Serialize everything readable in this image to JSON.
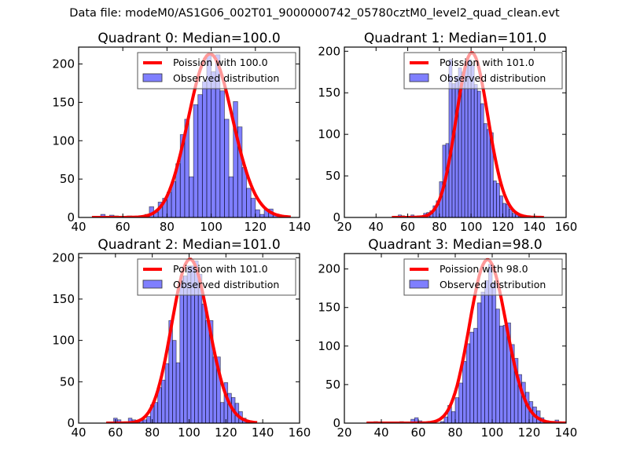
{
  "suptitle": "Data file: modeM0/AS1G06_002T01_9000000742_05780cztM0_level2_quad_clean.evt",
  "chart_data": [
    {
      "type": "bar",
      "title": "Quadrant 0: Median=100.0",
      "xlabel": "",
      "ylabel": "",
      "xlim": [
        40,
        140
      ],
      "ylim": [
        0,
        222
      ],
      "xticks": [
        40,
        60,
        80,
        100,
        120,
        140
      ],
      "yticks": [
        0,
        50,
        100,
        150,
        200
      ],
      "bin_width": 2,
      "legend": {
        "placement": "upper-right",
        "entries": [
          "Poission with 100.0",
          "Observed distribution"
        ]
      },
      "poisson_mean": 100.0,
      "poisson_peak": 213,
      "series": [
        {
          "name": "Observed distribution",
          "color": "#0000ff",
          "alpha": 0.5,
          "bin_starts": [
            50,
            52,
            54,
            56,
            58,
            60,
            62,
            64,
            66,
            68,
            70,
            72,
            74,
            76,
            78,
            80,
            82,
            84,
            86,
            88,
            90,
            92,
            94,
            96,
            98,
            100,
            102,
            104,
            106,
            108,
            110,
            112,
            114,
            116,
            118,
            120,
            122,
            124,
            126,
            128,
            130
          ],
          "values": [
            4,
            0,
            3,
            2,
            0,
            0,
            2,
            0,
            0,
            0,
            4,
            14,
            7,
            20,
            25,
            33,
            47,
            70,
            108,
            128,
            53,
            147,
            160,
            177,
            212,
            190,
            212,
            165,
            128,
            53,
            151,
            118,
            65,
            38,
            25,
            10,
            4,
            10,
            11,
            3,
            0
          ]
        }
      ]
    },
    {
      "type": "bar",
      "title": "Quadrant 1: Median=101.0",
      "xlabel": "",
      "ylabel": "",
      "xlim": [
        20,
        160
      ],
      "ylim": [
        0,
        205
      ],
      "xticks": [
        20,
        40,
        60,
        80,
        100,
        120,
        140,
        160
      ],
      "yticks": [
        0,
        50,
        100,
        150,
        200
      ],
      "bin_width": 2,
      "legend": {
        "placement": "upper-right",
        "entries": [
          "Poission with 101.0",
          "Observed distribution"
        ]
      },
      "poisson_mean": 101.0,
      "poisson_peak": 198,
      "series": [
        {
          "name": "Observed distribution",
          "color": "#0000ff",
          "alpha": 0.5,
          "bin_starts": [
            54,
            56,
            58,
            60,
            62,
            64,
            66,
            68,
            70,
            72,
            74,
            76,
            78,
            80,
            82,
            84,
            86,
            88,
            90,
            92,
            94,
            96,
            98,
            100,
            102,
            104,
            106,
            108,
            110,
            112,
            114,
            116,
            118,
            120,
            122,
            124,
            126,
            128,
            130,
            132,
            134,
            136,
            138,
            140
          ],
          "values": [
            3,
            2,
            0,
            0,
            3,
            1,
            2,
            0,
            5,
            6,
            8,
            14,
            20,
            43,
            87,
            89,
            190,
            161,
            170,
            180,
            175,
            187,
            190,
            183,
            160,
            152,
            137,
            113,
            106,
            102,
            44,
            41,
            26,
            17,
            16,
            10,
            5,
            3,
            1,
            2,
            0,
            1,
            1,
            0
          ]
        }
      ]
    },
    {
      "type": "bar",
      "title": "Quadrant 2: Median=101.0",
      "xlabel": "",
      "ylabel": "",
      "xlim": [
        40,
        160
      ],
      "ylim": [
        0,
        205
      ],
      "xticks": [
        40,
        60,
        80,
        100,
        120,
        140,
        160
      ],
      "yticks": [
        0,
        50,
        100,
        150,
        200
      ],
      "bin_width": 2,
      "legend": {
        "placement": "upper-right",
        "entries": [
          "Poission with 101.0",
          "Observed distribution"
        ]
      },
      "poisson_mean": 101.0,
      "poisson_peak": 198,
      "series": [
        {
          "name": "Observed distribution",
          "color": "#0000ff",
          "alpha": 0.5,
          "bin_starts": [
            59,
            61,
            63,
            65,
            67,
            69,
            71,
            73,
            75,
            77,
            79,
            81,
            83,
            85,
            87,
            89,
            91,
            93,
            95,
            97,
            99,
            101,
            103,
            105,
            107,
            109,
            111,
            113,
            115,
            117,
            119,
            121,
            123,
            125,
            127,
            129,
            131
          ],
          "values": [
            6,
            4,
            0,
            0,
            6,
            4,
            2,
            3,
            4,
            8,
            22,
            25,
            43,
            52,
            72,
            124,
            100,
            73,
            178,
            178,
            190,
            190,
            196,
            180,
            144,
            124,
            124,
            80,
            80,
            25,
            49,
            36,
            31,
            24,
            14,
            6,
            2
          ]
        }
      ]
    },
    {
      "type": "bar",
      "title": "Quadrant 3: Median=98.0",
      "xlabel": "",
      "ylabel": "",
      "xlim": [
        20,
        140
      ],
      "ylim": [
        0,
        220
      ],
      "xticks": [
        20,
        40,
        60,
        80,
        100,
        120,
        140
      ],
      "yticks": [
        0,
        50,
        100,
        150,
        200
      ],
      "bin_width": 2,
      "legend": {
        "placement": "upper-right",
        "entries": [
          "Poission with 98.0",
          "Observed distribution"
        ]
      },
      "poisson_mean": 98.0,
      "poisson_peak": 212,
      "series": [
        {
          "name": "Observed distribution",
          "color": "#0000ff",
          "alpha": 0.5,
          "bin_starts": [
            36,
            38,
            40,
            42,
            44,
            46,
            48,
            50,
            52,
            54,
            56,
            58,
            60,
            62,
            64,
            66,
            68,
            70,
            72,
            74,
            76,
            78,
            80,
            82,
            84,
            86,
            88,
            90,
            92,
            94,
            96,
            98,
            100,
            102,
            104,
            106,
            108,
            110,
            112,
            114,
            116,
            118,
            120,
            122,
            124,
            126,
            128,
            130,
            132,
            134
          ],
          "values": [
            2,
            0,
            0,
            0,
            0,
            0,
            1,
            2,
            0,
            0,
            5,
            7,
            3,
            1,
            0,
            0,
            0,
            0,
            2,
            8,
            23,
            15,
            33,
            52,
            80,
            103,
            118,
            123,
            156,
            170,
            185,
            206,
            182,
            148,
            126,
            127,
            130,
            102,
            84,
            63,
            53,
            40,
            28,
            21,
            16,
            7,
            3,
            1,
            0,
            4
          ]
        }
      ]
    }
  ]
}
